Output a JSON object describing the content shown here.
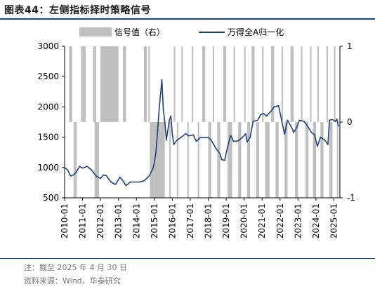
{
  "title": "图表44：左侧指标择时策略信号",
  "notes": {
    "note": "注：截至 2025 年 4 月 30 日",
    "source": "资料来源：Wind，华泰研究"
  },
  "colors": {
    "line": "#1f3f7a",
    "signal": "#bfbfbf",
    "rule": "#1f3f7a"
  },
  "chart_data": {
    "type": "line",
    "legend": [
      "信号值（右）",
      "万得全A归一化"
    ],
    "x_tick_labels": [
      "2010-01",
      "2011-01",
      "2012-01",
      "2013-01",
      "2014-01",
      "2015-01",
      "2016-01",
      "2017-01",
      "2018-01",
      "2019-01",
      "2020-01",
      "2021-01",
      "2022-01",
      "2023-01",
      "2024-01",
      "2025-01"
    ],
    "x_range": [
      "2010-01",
      "2025-05"
    ],
    "y_left": {
      "ticks": [
        "500",
        "1000",
        "1500",
        "2000",
        "2500",
        "3000"
      ],
      "range": [
        500,
        3000
      ]
    },
    "y_right": {
      "ticks": [
        "-1",
        "0",
        "1"
      ],
      "range": [
        -1,
        1
      ]
    },
    "series": [
      {
        "name": "万得全A归一化",
        "axis": "left",
        "points": [
          [
            "2010-01",
            1000
          ],
          [
            "2010-03",
            960
          ],
          [
            "2010-05",
            860
          ],
          [
            "2010-07",
            880
          ],
          [
            "2010-09",
            930
          ],
          [
            "2010-11",
            1020
          ],
          [
            "2011-01",
            990
          ],
          [
            "2011-04",
            1020
          ],
          [
            "2011-07",
            960
          ],
          [
            "2011-10",
            860
          ],
          [
            "2012-01",
            820
          ],
          [
            "2012-03",
            880
          ],
          [
            "2012-05",
            860
          ],
          [
            "2012-08",
            760
          ],
          [
            "2012-11",
            720
          ],
          [
            "2013-02",
            840
          ],
          [
            "2013-04",
            780
          ],
          [
            "2013-06",
            700
          ],
          [
            "2013-09",
            760
          ],
          [
            "2013-12",
            760
          ],
          [
            "2014-03",
            760
          ],
          [
            "2014-06",
            780
          ],
          [
            "2014-08",
            820
          ],
          [
            "2014-10",
            880
          ],
          [
            "2014-12",
            980
          ],
          [
            "2015-01",
            1080
          ],
          [
            "2015-02",
            1250
          ],
          [
            "2015-03",
            1550
          ],
          [
            "2015-04",
            1900
          ],
          [
            "2015-06",
            2450
          ],
          [
            "2015-07",
            1950
          ],
          [
            "2015-08",
            1750
          ],
          [
            "2015-09",
            1450
          ],
          [
            "2015-11",
            1780
          ],
          [
            "2015-12",
            1850
          ],
          [
            "2016-01",
            1550
          ],
          [
            "2016-02",
            1380
          ],
          [
            "2016-04",
            1450
          ],
          [
            "2016-07",
            1500
          ],
          [
            "2016-10",
            1560
          ],
          [
            "2016-12",
            1520
          ],
          [
            "2017-03",
            1540
          ],
          [
            "2017-05",
            1430
          ],
          [
            "2017-08",
            1500
          ],
          [
            "2017-11",
            1490
          ],
          [
            "2018-01",
            1500
          ],
          [
            "2018-03",
            1450
          ],
          [
            "2018-06",
            1320
          ],
          [
            "2018-09",
            1220
          ],
          [
            "2018-10",
            1130
          ],
          [
            "2018-12",
            1120
          ],
          [
            "2019-02",
            1350
          ],
          [
            "2019-04",
            1530
          ],
          [
            "2019-06",
            1430
          ],
          [
            "2019-09",
            1440
          ],
          [
            "2019-12",
            1500
          ],
          [
            "2020-02",
            1560
          ],
          [
            "2020-03",
            1420
          ],
          [
            "2020-05",
            1500
          ],
          [
            "2020-07",
            1760
          ],
          [
            "2020-10",
            1780
          ],
          [
            "2020-12",
            1870
          ],
          [
            "2021-02",
            1890
          ],
          [
            "2021-04",
            1850
          ],
          [
            "2021-07",
            1930
          ],
          [
            "2021-09",
            2000
          ],
          [
            "2021-12",
            2020
          ],
          [
            "2022-01",
            1900
          ],
          [
            "2022-04",
            1550
          ],
          [
            "2022-06",
            1780
          ],
          [
            "2022-09",
            1650
          ],
          [
            "2022-10",
            1580
          ],
          [
            "2022-12",
            1650
          ],
          [
            "2023-02",
            1780
          ],
          [
            "2023-05",
            1760
          ],
          [
            "2023-08",
            1660
          ],
          [
            "2023-10",
            1580
          ],
          [
            "2023-12",
            1540
          ],
          [
            "2024-02",
            1350
          ],
          [
            "2024-04",
            1500
          ],
          [
            "2024-07",
            1450
          ],
          [
            "2024-09",
            1380
          ],
          [
            "2024-10",
            1780
          ],
          [
            "2024-12",
            1790
          ],
          [
            "2025-02",
            1760
          ],
          [
            "2025-03",
            1800
          ],
          [
            "2025-04",
            1680
          ]
        ]
      },
      {
        "name": "信号值（右）",
        "axis": "right",
        "kind": "signal",
        "note": "intervals where signal = 1 (bar from 0 up to 1) or -1 (bar from 0 down to -1)",
        "intervals": [
          [
            "2010-04",
            "2010-06",
            1
          ],
          [
            "2010-07",
            "2010-09",
            -1
          ],
          [
            "2010-12",
            "2011-01",
            1
          ],
          [
            "2011-01",
            "2011-03",
            1
          ],
          [
            "2011-08",
            "2011-10",
            1
          ],
          [
            "2011-09",
            "2011-12",
            -1
          ],
          [
            "2012-01",
            "2013-01",
            1
          ],
          [
            "2013-04",
            "2013-06",
            1
          ],
          [
            "2014-06",
            "2014-08",
            1
          ],
          [
            "2014-09",
            "2014-10",
            1
          ],
          [
            "2014-10",
            "2015-01",
            -1
          ],
          [
            "2015-01",
            "2015-08",
            -1
          ],
          [
            "2015-11",
            "2015-12",
            -1
          ],
          [
            "2016-02",
            "2016-03",
            1
          ],
          [
            "2016-04",
            "2016-05",
            -1
          ],
          [
            "2016-07",
            "2016-08",
            1
          ],
          [
            "2016-11",
            "2016-12",
            -1
          ],
          [
            "2017-02",
            "2017-03",
            1
          ],
          [
            "2017-06",
            "2017-07",
            -1
          ],
          [
            "2017-09",
            "2017-11",
            1
          ],
          [
            "2018-01",
            "2018-03",
            -1
          ],
          [
            "2018-04",
            "2018-05",
            1
          ],
          [
            "2018-07",
            "2018-09",
            -1
          ],
          [
            "2018-11",
            "2019-01",
            1
          ],
          [
            "2019-02",
            "2019-05",
            -1
          ],
          [
            "2019-06",
            "2019-07",
            1
          ],
          [
            "2019-09",
            "2019-11",
            -1
          ],
          [
            "2020-01",
            "2020-02",
            1
          ],
          [
            "2020-03",
            "2020-05",
            -1
          ],
          [
            "2020-06",
            "2020-08",
            1
          ],
          [
            "2020-09",
            "2020-11",
            -1
          ],
          [
            "2021-01",
            "2021-02",
            1
          ],
          [
            "2021-03",
            "2021-06",
            -1
          ],
          [
            "2021-07",
            "2021-09",
            1
          ],
          [
            "2021-10",
            "2021-12",
            -1
          ],
          [
            "2022-02",
            "2022-03",
            1
          ],
          [
            "2022-04",
            "2022-06",
            -1
          ],
          [
            "2022-08",
            "2022-10",
            1
          ],
          [
            "2022-11",
            "2023-01",
            -1
          ],
          [
            "2023-03",
            "2023-04",
            1
          ],
          [
            "2023-06",
            "2023-08",
            -1
          ],
          [
            "2023-09",
            "2023-10",
            1
          ],
          [
            "2023-11",
            "2024-01",
            -1
          ],
          [
            "2024-02",
            "2024-03",
            1
          ],
          [
            "2024-04",
            "2024-06",
            -1
          ],
          [
            "2024-08",
            "2024-09",
            1
          ],
          [
            "2024-10",
            "2024-12",
            -1
          ],
          [
            "2025-01",
            "2025-02",
            1
          ],
          [
            "2025-03",
            "2025-04",
            -1
          ]
        ]
      }
    ]
  }
}
